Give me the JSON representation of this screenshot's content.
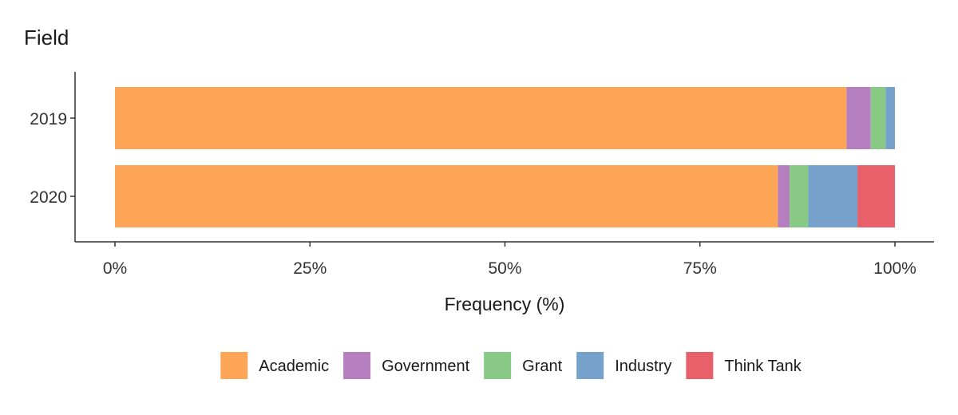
{
  "chart_data": {
    "type": "bar",
    "orientation": "horizontal",
    "stacked": true,
    "title": "Field",
    "xlabel": "Frequency (%)",
    "ylabel": "",
    "xlim": [
      0,
      100
    ],
    "x_ticks": [
      "0%",
      "25%",
      "50%",
      "75%",
      "100%"
    ],
    "x_tick_values": [
      0,
      25,
      50,
      75,
      100
    ],
    "categories": [
      "2019",
      "2020"
    ],
    "series": [
      {
        "name": "Academic",
        "color": "#FDA657",
        "values": [
          93.8,
          85.0
        ]
      },
      {
        "name": "Government",
        "color": "#B57EBF",
        "values": [
          3.1,
          1.5
        ]
      },
      {
        "name": "Grant",
        "color": "#87C985",
        "values": [
          1.9,
          2.4
        ]
      },
      {
        "name": "Industry",
        "color": "#75A1CB",
        "values": [
          1.2,
          6.3
        ]
      },
      {
        "name": "Think Tank",
        "color": "#E8606A",
        "values": [
          0.0,
          4.8
        ]
      }
    ],
    "legend_position": "bottom",
    "grid": false
  }
}
